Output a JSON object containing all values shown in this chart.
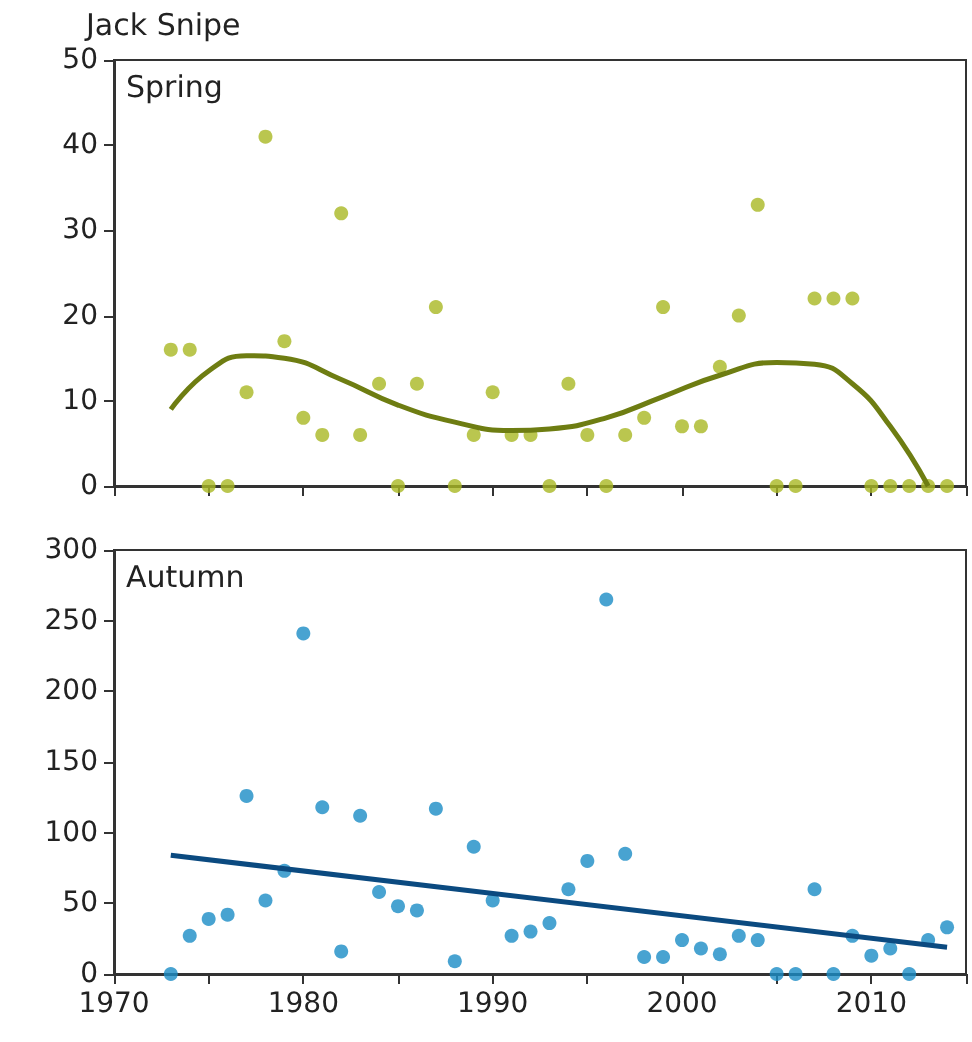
{
  "chart_data": [
    {
      "type": "scatter",
      "title": "Jack Snipe",
      "annotations": [
        "Spring"
      ],
      "xlim": [
        1970,
        2015
      ],
      "xticks": [
        {
          "value": 1970,
          "label": null
        },
        {
          "value": 1975,
          "label": null
        },
        {
          "value": 1980,
          "label": null
        },
        {
          "value": 1985,
          "label": null
        },
        {
          "value": 1990,
          "label": null
        },
        {
          "value": 1995,
          "label": null
        },
        {
          "value": 2000,
          "label": null
        },
        {
          "value": 2005,
          "label": null
        },
        {
          "value": 2010,
          "label": null
        },
        {
          "value": 2015,
          "label": null
        }
      ],
      "ylim": [
        0,
        50
      ],
      "yticks": [
        0,
        10,
        20,
        30,
        40,
        50
      ],
      "tick_labels": "y",
      "series": [
        {
          "marker": "circle",
          "color": "#a9b823",
          "x": [
            1973,
            1974,
            1975,
            1976,
            1977,
            1978,
            1979,
            1980,
            1981,
            1982,
            1983,
            1984,
            1985,
            1986,
            1987,
            1988,
            1989,
            1990,
            1991,
            1992,
            1993,
            1994,
            1995,
            1996,
            1997,
            1998,
            1999,
            2000,
            2001,
            2002,
            2003,
            2004,
            2005,
            2006,
            2007,
            2008,
            2009,
            2010,
            2011,
            2012,
            2013,
            2014
          ],
          "values": [
            16,
            16,
            0,
            0,
            11,
            41,
            17,
            8,
            6,
            32,
            6,
            12,
            0,
            12,
            21,
            0,
            6,
            11,
            6,
            6,
            0,
            12,
            6,
            0,
            6,
            8,
            21,
            7,
            7,
            14,
            20,
            33,
            0,
            0,
            22,
            22,
            22,
            0,
            0,
            0,
            0,
            0
          ]
        },
        {
          "type": "line",
          "marker": "none",
          "line_style": "solid",
          "color": "#6e7d12",
          "x": [
            1973,
            1975,
            1977,
            1979,
            1982,
            1985,
            1988,
            1991,
            1993,
            1996,
            1999,
            2002,
            2005,
            2007,
            2009,
            2011,
            2013
          ],
          "values": [
            9,
            13.5,
            15.3,
            15,
            12.5,
            9.5,
            7.5,
            6.5,
            6.7,
            8,
            10.5,
            13,
            14.5,
            14.3,
            12,
            7,
            0
          ]
        }
      ]
    },
    {
      "type": "scatter",
      "annotations": [
        "Autumn"
      ],
      "xlim": [
        1970,
        2015
      ],
      "xticks": [
        1970,
        {
          "value": 1975,
          "label": null
        },
        1980,
        {
          "value": 1985,
          "label": null
        },
        1990,
        {
          "value": 1995,
          "label": null
        },
        2000,
        {
          "value": 2005,
          "label": null
        },
        2010,
        {
          "value": 2015,
          "label": null
        }
      ],
      "ylim": [
        0,
        300
      ],
      "yticks": [
        0,
        50,
        100,
        150,
        200,
        250,
        300
      ],
      "series": [
        {
          "marker": "circle",
          "color": "#1a8cc6",
          "x": [
            1973,
            1974,
            1975,
            1976,
            1977,
            1978,
            1979,
            1980,
            1981,
            1982,
            1983,
            1984,
            1985,
            1986,
            1987,
            1988,
            1989,
            1990,
            1991,
            1992,
            1993,
            1994,
            1995,
            1996,
            1997,
            1998,
            1999,
            2000,
            2001,
            2002,
            2003,
            2004,
            2005,
            2006,
            2007,
            2008,
            2009,
            2010,
            2011,
            2012,
            2013,
            2014
          ],
          "values": [
            0,
            27,
            39,
            42,
            126,
            52,
            73,
            241,
            118,
            16,
            112,
            58,
            48,
            45,
            117,
            9,
            90,
            52,
            27,
            30,
            36,
            60,
            80,
            265,
            85,
            12,
            12,
            24,
            18,
            14,
            27,
            24,
            0,
            0,
            60,
            0,
            27,
            13,
            18,
            0,
            24,
            33
          ]
        },
        {
          "type": "line",
          "marker": "none",
          "line_style": "solid",
          "color": "#0b4a80",
          "x": [
            1973,
            2014
          ],
          "values": [
            84,
            19
          ]
        }
      ]
    }
  ]
}
